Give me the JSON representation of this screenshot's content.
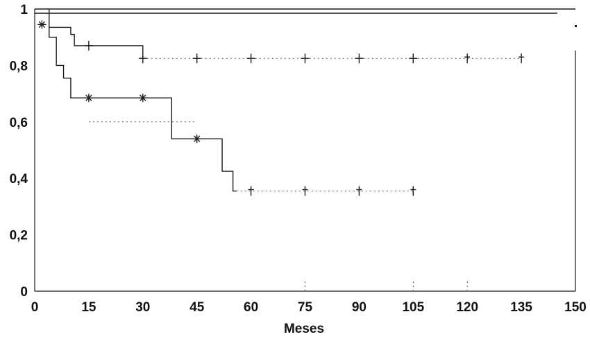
{
  "chart_data": {
    "type": "line",
    "step": true,
    "xlabel": "Meses",
    "ylabel": "",
    "xlim": [
      0,
      150
    ],
    "ylim": [
      0,
      1
    ],
    "xticks": [
      0,
      15,
      30,
      45,
      60,
      75,
      90,
      105,
      120,
      135,
      150
    ],
    "yticks": [
      0,
      0.2,
      0.4,
      0.6,
      0.8,
      1
    ],
    "ytick_labels": [
      "0",
      "0,2",
      "0,4",
      "0,6",
      "0,8",
      "1"
    ],
    "legend": "none",
    "grid": false,
    "series": [
      {
        "marker": "none",
        "x": [
          0,
          150
        ],
        "y": [
          1,
          1
        ]
      },
      {
        "marker": "none",
        "x": [
          0,
          145
        ],
        "y": [
          0.985,
          0.985
        ]
      },
      {
        "marker": "plus",
        "x": [
          4,
          10,
          11,
          30,
          30,
          135
        ],
        "y": [
          0.935,
          0.935,
          0.91,
          0.87,
          0.825,
          0.825
        ],
        "step_x": [
          4,
          10,
          11,
          30
        ],
        "step_y": [
          0.935,
          0.91,
          0.87,
          0.825
        ],
        "censored": [
          {
            "x": 15,
            "y": 0.87
          },
          {
            "x": 30,
            "y": 0.825
          },
          {
            "x": 45,
            "y": 0.825
          },
          {
            "x": 60,
            "y": 0.825
          },
          {
            "x": 75,
            "y": 0.825
          },
          {
            "x": 90,
            "y": 0.825
          },
          {
            "x": 105,
            "y": 0.825
          },
          {
            "x": 120,
            "y": 0.825
          },
          {
            "x": 135,
            "y": 0.825
          }
        ]
      },
      {
        "marker": "asterisk",
        "step_x": [
          4,
          6,
          8,
          10,
          11,
          38,
          52,
          55
        ],
        "step_y": [
          0.9,
          0.8,
          0.755,
          0.685,
          0.685,
          0.54,
          0.425,
          0.355
        ],
        "end_x": 56,
        "censored": [
          {
            "x": 15,
            "y": 0.685
          },
          {
            "x": 30,
            "y": 0.685
          },
          {
            "x": 45,
            "y": 0.54
          },
          {
            "x": 60,
            "y": 0.355
          },
          {
            "x": 75,
            "y": 0.355
          },
          {
            "x": 90,
            "y": 0.355
          },
          {
            "x": 105,
            "y": 0.355
          }
        ]
      }
    ],
    "start_marker": {
      "x": 0,
      "y": 0.945
    }
  }
}
